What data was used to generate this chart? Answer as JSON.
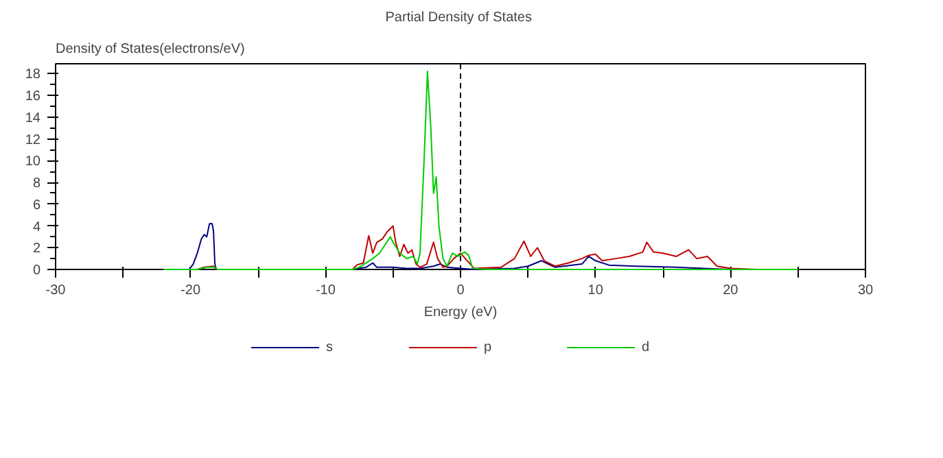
{
  "chart_data": {
    "type": "line",
    "title": "Partial  Density of States",
    "xlabel": "Energy (eV)",
    "ylabel": "Density of States(electrons/eV)",
    "xlim": [
      -30,
      30
    ],
    "ylim": [
      0,
      18.9
    ],
    "xticks": [
      -30,
      {
        "value": -25,
        "label": null
      },
      -20,
      {
        "value": -15,
        "label": null
      },
      -10,
      {
        "value": -5,
        "label": null
      },
      0,
      {
        "value": 5,
        "label": null
      },
      10,
      {
        "value": 15,
        "label": null
      },
      20,
      {
        "value": 25,
        "label": null
      },
      30
    ],
    "yticks": [
      0,
      2,
      4,
      6,
      8,
      10,
      12,
      14,
      16,
      18
    ],
    "grid": false,
    "legend": "bottom",
    "line_style": "solid",
    "marker": "none",
    "ref_lines": [
      {
        "axis": "x",
        "value": 0,
        "label": null,
        "color": "#000000",
        "line_style": "dashed"
      }
    ],
    "series": [
      {
        "name": "s",
        "color": "#000080",
        "x": [
          -22,
          -20.1,
          -19.8,
          -19.5,
          -19.2,
          -19,
          -18.8,
          -18.6,
          -18.4,
          -18.3,
          -18.2,
          -18.1,
          -8,
          -7,
          -6.5,
          -6.2,
          -5,
          -4,
          -3,
          -2,
          -1.5,
          -1,
          0,
          1,
          4,
          5,
          6,
          7,
          9,
          9.5,
          10,
          11,
          13,
          16,
          18,
          20,
          22
        ],
        "values": [
          0,
          0,
          0.5,
          1.5,
          2.8,
          3.2,
          3.0,
          4.2,
          4.2,
          3.5,
          0.5,
          0,
          0,
          0.2,
          0.6,
          0.2,
          0.2,
          0.1,
          0.1,
          0.3,
          0.5,
          0.2,
          0.1,
          0,
          0.1,
          0.3,
          0.8,
          0.2,
          0.5,
          1.2,
          0.8,
          0.4,
          0.3,
          0.2,
          0.1,
          0,
          0
        ]
      },
      {
        "name": "p",
        "color": "#c00000",
        "x": [
          -22,
          -19.5,
          -19,
          -18.3,
          -18.1,
          -8,
          -7.7,
          -7.2,
          -6.8,
          -6.5,
          -6.2,
          -5.8,
          -5.4,
          -5,
          -4.8,
          -4.5,
          -4.2,
          -3.9,
          -3.6,
          -3.3,
          -3,
          -2.5,
          -2,
          -1.7,
          -1.3,
          -1,
          -0.5,
          0,
          0.5,
          1,
          3,
          4,
          4.7,
          5.2,
          5.7,
          6.2,
          7,
          8,
          9,
          9.5,
          10,
          10.5,
          11.5,
          12.5,
          13.5,
          13.8,
          14.3,
          15,
          16,
          16.9,
          17.5,
          18.3,
          19,
          20,
          22
        ],
        "values": [
          0,
          0,
          0.2,
          0.3,
          0,
          0,
          0.4,
          0.6,
          3.1,
          1.5,
          2.5,
          2.8,
          3.5,
          4.0,
          2.5,
          1.2,
          2.3,
          1.5,
          1.8,
          0.5,
          0.2,
          0.5,
          2.5,
          1.0,
          0.2,
          0.3,
          1.0,
          1.5,
          0.8,
          0.1,
          0.2,
          1.0,
          2.6,
          1.2,
          2.0,
          0.8,
          0.3,
          0.6,
          1.0,
          1.3,
          1.4,
          0.8,
          1.0,
          1.2,
          1.6,
          2.5,
          1.6,
          1.5,
          1.2,
          1.8,
          1.0,
          1.2,
          0.3,
          0.1,
          0
        ]
      },
      {
        "name": "d",
        "color": "#00cc00",
        "x": [
          -22,
          -19.5,
          -18.8,
          -18.2,
          -18,
          -8,
          -7.5,
          -6.5,
          -6,
          -5.2,
          -5,
          -4.5,
          -4,
          -3.5,
          -3.2,
          -3,
          -2.7,
          -2.45,
          -2.2,
          -2.0,
          -1.8,
          -1.6,
          -1.3,
          -1,
          -0.6,
          -0.2,
          0.3,
          0.6,
          0.9,
          2,
          25
        ],
        "values": [
          0,
          0,
          0.2,
          0.2,
          0,
          0,
          0.2,
          1.0,
          1.5,
          3.0,
          2.5,
          1.5,
          1.0,
          1.2,
          0.5,
          1.5,
          10,
          18.2,
          13,
          7.0,
          8.5,
          4,
          1.0,
          0.3,
          1.5,
          1.2,
          1.6,
          1.3,
          0.1,
          0,
          0
        ]
      }
    ]
  }
}
